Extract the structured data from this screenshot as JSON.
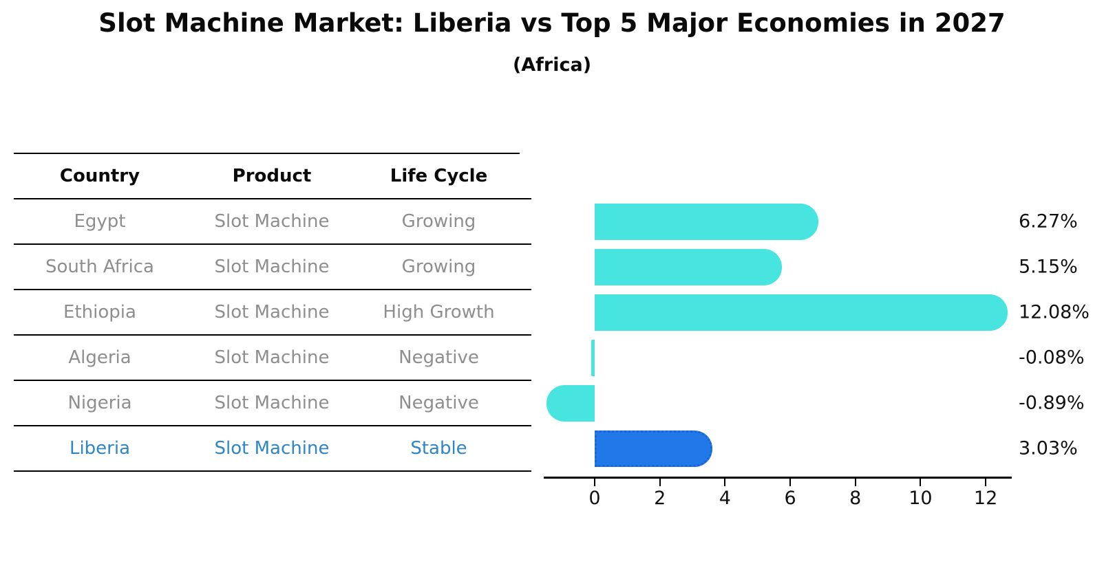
{
  "title": "Slot Machine Market: Liberia vs Top 5 Major Economies in 2027",
  "subtitle": "(Africa)",
  "table": {
    "headers": [
      "Country",
      "Product",
      "Life Cycle"
    ],
    "rows": [
      {
        "country": "Egypt",
        "product": "Slot Machine",
        "life_cycle": "Growing",
        "highlight": false
      },
      {
        "country": "South Africa",
        "product": "Slot Machine",
        "life_cycle": "Growing",
        "highlight": false
      },
      {
        "country": "Ethiopia",
        "product": "Slot Machine",
        "life_cycle": "High Growth",
        "highlight": false
      },
      {
        "country": "Algeria",
        "product": "Slot Machine",
        "life_cycle": "Negative",
        "highlight": false
      },
      {
        "country": "Nigeria",
        "product": "Slot Machine",
        "life_cycle": "Negative",
        "highlight": false
      },
      {
        "country": "Liberia",
        "product": "Slot Machine",
        "life_cycle": "Stable",
        "highlight": true
      }
    ]
  },
  "chart_data": {
    "type": "bar",
    "orientation": "horizontal",
    "title": "Slot Machine Market: Liberia vs Top 5 Major Economies in 2027",
    "subtitle": "(Africa)",
    "categories": [
      "Egypt",
      "South Africa",
      "Ethiopia",
      "Algeria",
      "Nigeria",
      "Liberia"
    ],
    "values": [
      6.27,
      5.15,
      12.08,
      -0.08,
      -0.89,
      3.03
    ],
    "value_labels": [
      "6.27%",
      "5.15%",
      "12.08%",
      "-0.08%",
      "-0.89%",
      "3.03%"
    ],
    "x_ticks": [
      "0",
      "2",
      "4",
      "6",
      "8",
      "10",
      "12"
    ],
    "xlim": [
      -1.6,
      12.8
    ],
    "grid": false,
    "legend": false,
    "highlight_index": 5
  },
  "colors": {
    "bar": "#47E4E0",
    "bar_highlight": "#2178E8",
    "bar_highlight_border": "#1B63D8",
    "highlight_text": "#2E86C9",
    "table_text": "#8E8E8E",
    "header_text": "#0A0A0A",
    "value_text": "#111111",
    "axis": "#000000"
  }
}
